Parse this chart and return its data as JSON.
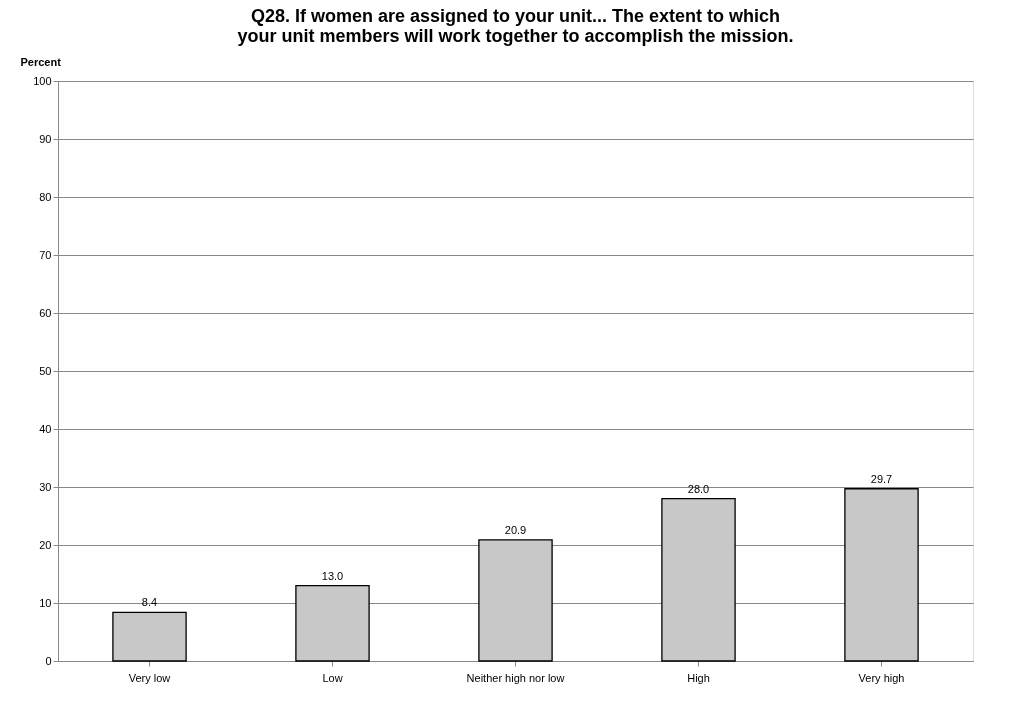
{
  "chart_data": {
    "type": "bar",
    "title": "Q28. If women are assigned to your unit... The extent to which your unit members will work together to accomplish the mission.",
    "ylabel": "Percent",
    "categories": [
      "Very low",
      "Low",
      "Neither high nor low",
      "High",
      "Very high"
    ],
    "values": [
      8.4,
      13.0,
      20.9,
      28.0,
      29.7
    ],
    "value_labels": [
      "8.4",
      "13.0",
      "20.9",
      "28.0",
      "29.7"
    ],
    "color": "#c8c8c8",
    "ylim": [
      0,
      100
    ],
    "yticks": [
      0,
      10,
      20,
      30,
      40,
      50,
      60,
      70,
      80,
      90,
      100
    ],
    "grid": "y"
  }
}
